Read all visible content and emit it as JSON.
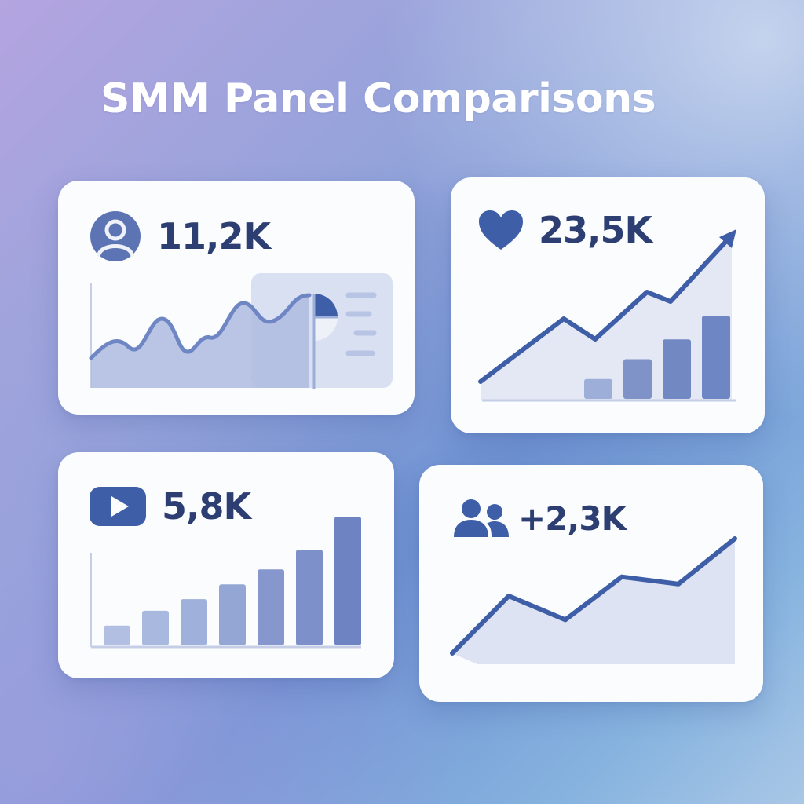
{
  "page": {
    "title": "SMM Panel Comparisons"
  },
  "cards": [
    {
      "metric": "11,2K",
      "icon": "user-profile-icon",
      "chart": "area-wave-with-pie-widget"
    },
    {
      "metric": "23,5K",
      "icon": "heart-icon",
      "chart": "bar-with-rising-arrow"
    },
    {
      "metric": "5,8K",
      "icon": "video-play-icon",
      "chart": "rising-bars"
    },
    {
      "metric": "+2,3K",
      "icon": "users-group-icon",
      "chart": "rising-line-area"
    }
  ],
  "colors": {
    "accent_dark": "#2d3f72",
    "accent": "#3e5ea7",
    "accent_soft": "#9daed8",
    "fill_light": "#d9e0f1",
    "card_bg": "#fbfcfe"
  },
  "chart_data": [
    {
      "type": "bar",
      "panel": "likes",
      "values": [
        1,
        2,
        3,
        4.2
      ]
    },
    {
      "type": "bar",
      "panel": "video",
      "values": [
        1.2,
        2.1,
        2.8,
        3.7,
        4.6,
        5.8,
        7.8
      ]
    },
    {
      "type": "line",
      "panel": "likes-trend",
      "values": [
        0,
        2,
        1.3,
        3,
        2.5,
        4.6
      ]
    },
    {
      "type": "area",
      "panel": "followers-trend",
      "values": [
        0,
        2.4,
        1.4,
        3.2,
        2.9,
        4.8
      ]
    }
  ]
}
